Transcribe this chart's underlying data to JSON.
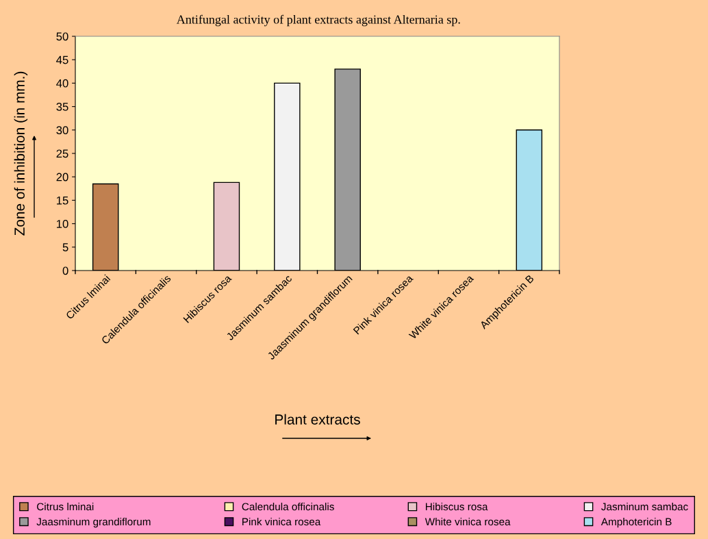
{
  "chart_data": {
    "type": "bar",
    "title": "Antifungal activity of plant extracts against Alternaria sp.",
    "xlabel": "Plant extracts",
    "ylabel": "Zone of inhibition (in mm.)",
    "categories": [
      "Citrus lminai",
      "Calendula officinalis",
      "Hibiscus rosa",
      "Jasminum sambac",
      "Jaasminum grandiflorum",
      "Pink vinica rosea",
      "White vinica rosea",
      "Amphotericin B"
    ],
    "series": [
      {
        "name": "Citrus lminai",
        "color": "#c08050",
        "values": [
          18.5,
          null,
          null,
          null,
          null,
          null,
          null,
          null
        ]
      },
      {
        "name": "Calendula officinalis",
        "color": "#fff0b0",
        "values": [
          null,
          0,
          null,
          null,
          null,
          null,
          null,
          null
        ]
      },
      {
        "name": "Hibiscus rosa",
        "color": "#e8c4c8",
        "values": [
          null,
          null,
          18.8,
          null,
          null,
          null,
          null,
          null
        ]
      },
      {
        "name": "Jasminum sambac",
        "color": "#f2f2f2",
        "values": [
          null,
          null,
          null,
          40,
          null,
          null,
          null,
          null
        ]
      },
      {
        "name": "Jaasminum grandiflorum",
        "color": "#9a9a9a",
        "values": [
          null,
          null,
          null,
          null,
          43,
          null,
          null,
          null
        ]
      },
      {
        "name": "Pink vinica rosea",
        "color": "#4a1060",
        "values": [
          null,
          null,
          null,
          null,
          null,
          0,
          null,
          null
        ]
      },
      {
        "name": "White vinica rosea",
        "color": "#a89060",
        "values": [
          null,
          null,
          null,
          null,
          null,
          null,
          0,
          null
        ]
      },
      {
        "name": "Amphotericin B",
        "color": "#a8e0f0",
        "values": [
          null,
          null,
          null,
          null,
          null,
          null,
          null,
          30
        ]
      }
    ],
    "ylim": [
      0,
      50
    ],
    "yticks": [
      0,
      5,
      10,
      15,
      20,
      25,
      30,
      35,
      40,
      45,
      50
    ],
    "grid": false,
    "legend": "bottom"
  }
}
